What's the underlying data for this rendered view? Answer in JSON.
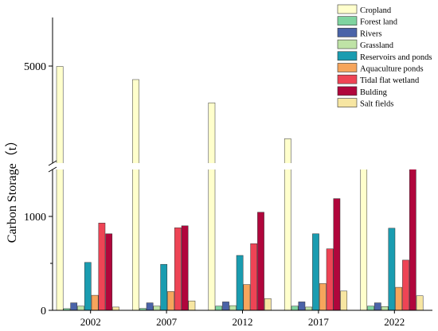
{
  "chart_data": {
    "type": "bar",
    "title": "",
    "xlabel": "",
    "ylabel": "Carbon Storage（t）",
    "categories": [
      "2002",
      "2007",
      "2012",
      "2017",
      "2022"
    ],
    "axis_break": {
      "lower_range": [
        0,
        1250
      ],
      "upper_range": [
        2650,
        6500
      ]
    },
    "yticks": [
      {
        "value": 0,
        "label": "0"
      },
      {
        "value": 1000,
        "label": "1000"
      },
      {
        "value": 5000,
        "label": "5000"
      }
    ],
    "legend_position": "top-right",
    "series": [
      {
        "name": "Cropland",
        "color": "#FFFFCC",
        "values": [
          4990,
          4640,
          4020,
          3060,
          2590
        ]
      },
      {
        "name": "Forest land",
        "color": "#7FD4A0",
        "values": [
          18,
          20,
          45,
          45,
          45
        ]
      },
      {
        "name": "Rivers",
        "color": "#4A63A8",
        "values": [
          80,
          80,
          90,
          90,
          80
        ]
      },
      {
        "name": "Grassland",
        "color": "#BFE3A6",
        "values": [
          45,
          45,
          50,
          35,
          40
        ]
      },
      {
        "name": "Reservoirs and ponds",
        "color": "#1A9CB0",
        "values": [
          510,
          490,
          585,
          815,
          875
        ]
      },
      {
        "name": "Aquaculture ponds",
        "color": "#F6A55C",
        "values": [
          160,
          200,
          275,
          285,
          245
        ]
      },
      {
        "name": "Tidal flat wetland",
        "color": "#EE4455",
        "values": [
          930,
          880,
          710,
          655,
          535
        ]
      },
      {
        "name": "Bulding",
        "color": "#B0063C",
        "values": [
          815,
          900,
          1045,
          1190,
          1410
        ]
      },
      {
        "name": "Salt fields",
        "color": "#F7E6A2",
        "values": [
          35,
          100,
          125,
          205,
          155
        ]
      }
    ]
  }
}
